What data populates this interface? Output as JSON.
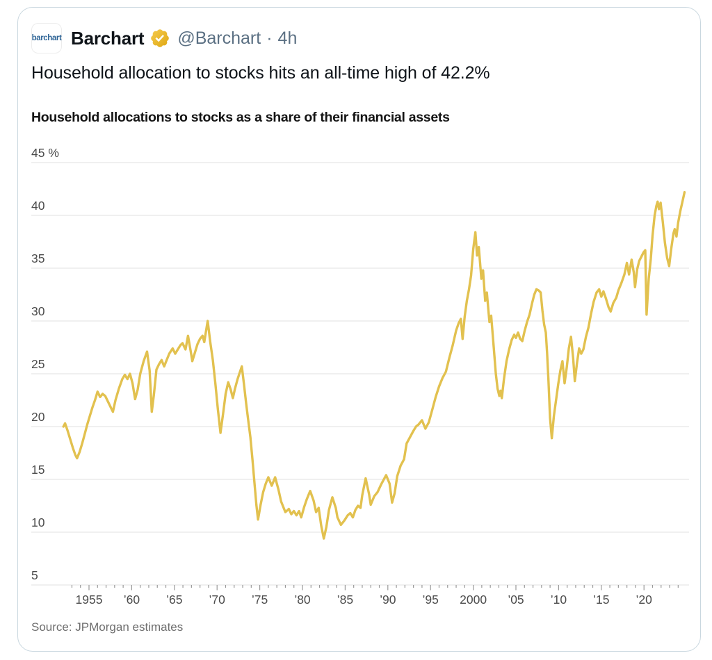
{
  "header": {
    "avatar_text": "barchart",
    "name": "Barchart",
    "verified_badge": "gold-verified-badge-icon",
    "handle": "@Barchart",
    "separator": "·",
    "time": "4h"
  },
  "tweet": {
    "text": "Household allocation to stocks hits an all-time high of 42.2%"
  },
  "colors": {
    "line_gold": "#E2C14F",
    "badge_gold_light": "#F5CB4E",
    "badge_gold_dark": "#DFA712",
    "grid": "#E2E2E2",
    "axis_label": "#4B4B4B",
    "tick_mark": "#9A9A9A",
    "text_dark": "#0F1419",
    "handle_gray": "#5B7083",
    "source_gray": "#6E6E6E",
    "card_border": "#C9D7DF",
    "avatar_blue": "#2E6496"
  },
  "chart_data": {
    "type": "line",
    "title": "Household allocations to stocks as a share of their financial assets",
    "source": "Source: JPMorgan estimates",
    "unit": "%",
    "grid": "horizontal-only",
    "legend": "none",
    "xlim": [
      1952,
      2024.75
    ],
    "ylim": [
      5,
      45
    ],
    "y_ticks": [
      {
        "v": 45,
        "label": "45 %"
      },
      {
        "v": 40,
        "label": "40"
      },
      {
        "v": 35,
        "label": "35"
      },
      {
        "v": 30,
        "label": "30"
      },
      {
        "v": 25,
        "label": "25"
      },
      {
        "v": 20,
        "label": "20"
      },
      {
        "v": 15,
        "label": "15"
      },
      {
        "v": 10,
        "label": "10"
      },
      {
        "v": 5,
        "label": "5"
      }
    ],
    "x_ticks": [
      {
        "year": 1955,
        "label": "1955"
      },
      {
        "year": 1960,
        "label": "’60"
      },
      {
        "year": 1965,
        "label": "’65"
      },
      {
        "year": 1970,
        "label": "’70"
      },
      {
        "year": 1975,
        "label": "’75"
      },
      {
        "year": 1980,
        "label": "’80"
      },
      {
        "year": 1985,
        "label": "’85"
      },
      {
        "year": 1990,
        "label": "’90"
      },
      {
        "year": 1995,
        "label": "’95"
      },
      {
        "year": 2000,
        "label": "2000"
      },
      {
        "year": 2005,
        "label": "’05"
      },
      {
        "year": 2010,
        "label": "’10"
      },
      {
        "year": 2015,
        "label": "’15"
      },
      {
        "year": 2020,
        "label": "’20"
      }
    ],
    "minor_tick_year_range": [
      1953,
      2024
    ],
    "series": [
      {
        "color": "#E2C14F",
        "points": [
          [
            1952.0,
            20.0
          ],
          [
            1952.2,
            20.3
          ],
          [
            1952.5,
            19.6
          ],
          [
            1952.8,
            18.8
          ],
          [
            1953.1,
            18.0
          ],
          [
            1953.4,
            17.3
          ],
          [
            1953.6,
            17.0
          ],
          [
            1953.9,
            17.6
          ],
          [
            1954.2,
            18.4
          ],
          [
            1954.5,
            19.3
          ],
          [
            1954.8,
            20.2
          ],
          [
            1955.1,
            21.0
          ],
          [
            1955.4,
            21.8
          ],
          [
            1955.7,
            22.5
          ],
          [
            1956.0,
            23.3
          ],
          [
            1956.3,
            22.8
          ],
          [
            1956.6,
            23.1
          ],
          [
            1956.9,
            22.9
          ],
          [
            1957.2,
            22.4
          ],
          [
            1957.5,
            21.9
          ],
          [
            1957.8,
            21.4
          ],
          [
            1958.1,
            22.5
          ],
          [
            1958.5,
            23.6
          ],
          [
            1958.9,
            24.5
          ],
          [
            1959.2,
            24.9
          ],
          [
            1959.5,
            24.5
          ],
          [
            1959.8,
            25.0
          ],
          [
            1960.1,
            24.1
          ],
          [
            1960.4,
            22.6
          ],
          [
            1960.7,
            23.5
          ],
          [
            1961.0,
            25.0
          ],
          [
            1961.4,
            26.2
          ],
          [
            1961.8,
            27.1
          ],
          [
            1962.1,
            25.3
          ],
          [
            1962.35,
            21.4
          ],
          [
            1962.6,
            23.0
          ],
          [
            1962.9,
            25.4
          ],
          [
            1963.2,
            25.9
          ],
          [
            1963.5,
            26.3
          ],
          [
            1963.8,
            25.7
          ],
          [
            1964.1,
            26.3
          ],
          [
            1964.4,
            26.9
          ],
          [
            1964.8,
            27.4
          ],
          [
            1965.1,
            26.9
          ],
          [
            1965.4,
            27.3
          ],
          [
            1965.7,
            27.7
          ],
          [
            1965.95,
            27.9
          ],
          [
            1966.3,
            27.3
          ],
          [
            1966.6,
            28.6
          ],
          [
            1966.9,
            27.2
          ],
          [
            1967.1,
            26.2
          ],
          [
            1967.4,
            27.0
          ],
          [
            1967.7,
            27.8
          ],
          [
            1968.0,
            28.3
          ],
          [
            1968.3,
            28.6
          ],
          [
            1968.5,
            28.0
          ],
          [
            1968.7,
            29.0
          ],
          [
            1968.9,
            30.0
          ],
          [
            1969.2,
            28.0
          ],
          [
            1969.5,
            26.3
          ],
          [
            1969.8,
            24.1
          ],
          [
            1970.1,
            21.6
          ],
          [
            1970.4,
            19.4
          ],
          [
            1970.7,
            21.2
          ],
          [
            1971.0,
            23.1
          ],
          [
            1971.3,
            24.2
          ],
          [
            1971.6,
            23.5
          ],
          [
            1971.85,
            22.7
          ],
          [
            1972.1,
            23.6
          ],
          [
            1972.4,
            24.5
          ],
          [
            1972.65,
            25.1
          ],
          [
            1972.9,
            25.7
          ],
          [
            1973.15,
            24.0
          ],
          [
            1973.4,
            22.2
          ],
          [
            1973.65,
            20.6
          ],
          [
            1973.9,
            19.0
          ],
          [
            1974.15,
            16.8
          ],
          [
            1974.4,
            14.5
          ],
          [
            1974.6,
            12.6
          ],
          [
            1974.8,
            11.2
          ],
          [
            1975.1,
            12.6
          ],
          [
            1975.4,
            13.8
          ],
          [
            1975.7,
            14.6
          ],
          [
            1976.0,
            15.2
          ],
          [
            1976.4,
            14.4
          ],
          [
            1976.8,
            15.2
          ],
          [
            1977.2,
            14.0
          ],
          [
            1977.5,
            12.9
          ],
          [
            1978.0,
            11.9
          ],
          [
            1978.4,
            12.2
          ],
          [
            1978.7,
            11.7
          ],
          [
            1979.0,
            12.0
          ],
          [
            1979.3,
            11.6
          ],
          [
            1979.6,
            12.0
          ],
          [
            1979.85,
            11.4
          ],
          [
            1980.2,
            12.4
          ],
          [
            1980.5,
            13.1
          ],
          [
            1980.9,
            13.9
          ],
          [
            1981.3,
            13.0
          ],
          [
            1981.6,
            11.9
          ],
          [
            1981.9,
            12.3
          ],
          [
            1982.2,
            10.6
          ],
          [
            1982.5,
            9.4
          ],
          [
            1982.8,
            10.5
          ],
          [
            1983.1,
            12.1
          ],
          [
            1983.5,
            13.3
          ],
          [
            1983.9,
            12.3
          ],
          [
            1984.1,
            11.4
          ],
          [
            1984.5,
            10.7
          ],
          [
            1984.9,
            11.1
          ],
          [
            1985.3,
            11.6
          ],
          [
            1985.6,
            11.8
          ],
          [
            1985.9,
            11.4
          ],
          [
            1986.2,
            12.1
          ],
          [
            1986.5,
            12.5
          ],
          [
            1986.8,
            12.3
          ],
          [
            1987.0,
            13.5
          ],
          [
            1987.4,
            15.1
          ],
          [
            1987.8,
            13.6
          ],
          [
            1988.0,
            12.6
          ],
          [
            1988.4,
            13.4
          ],
          [
            1988.8,
            13.8
          ],
          [
            1989.2,
            14.5
          ],
          [
            1989.8,
            15.4
          ],
          [
            1990.2,
            14.6
          ],
          [
            1990.5,
            12.8
          ],
          [
            1990.8,
            13.7
          ],
          [
            1991.1,
            15.3
          ],
          [
            1991.5,
            16.3
          ],
          [
            1991.9,
            16.9
          ],
          [
            1992.2,
            18.4
          ],
          [
            1992.6,
            19.0
          ],
          [
            1993.0,
            19.6
          ],
          [
            1993.3,
            20.0
          ],
          [
            1993.6,
            20.2
          ],
          [
            1994.0,
            20.6
          ],
          [
            1994.4,
            19.8
          ],
          [
            1994.8,
            20.4
          ],
          [
            1995.2,
            21.6
          ],
          [
            1995.6,
            22.8
          ],
          [
            1996.0,
            23.8
          ],
          [
            1996.4,
            24.6
          ],
          [
            1996.8,
            25.2
          ],
          [
            1997.2,
            26.5
          ],
          [
            1997.6,
            27.7
          ],
          [
            1998.0,
            29.1
          ],
          [
            1998.3,
            29.8
          ],
          [
            1998.55,
            30.2
          ],
          [
            1998.75,
            28.3
          ],
          [
            1999.0,
            30.4
          ],
          [
            1999.25,
            31.9
          ],
          [
            1999.5,
            33.0
          ],
          [
            1999.75,
            34.3
          ],
          [
            2000.0,
            36.8
          ],
          [
            2000.25,
            38.4
          ],
          [
            2000.45,
            36.2
          ],
          [
            2000.65,
            37.0
          ],
          [
            2000.95,
            34.0
          ],
          [
            2001.15,
            34.8
          ],
          [
            2001.4,
            31.9
          ],
          [
            2001.6,
            32.7
          ],
          [
            2001.9,
            29.9
          ],
          [
            2002.1,
            30.5
          ],
          [
            2002.4,
            27.5
          ],
          [
            2002.65,
            25.0
          ],
          [
            2002.85,
            23.6
          ],
          [
            2003.05,
            22.9
          ],
          [
            2003.2,
            23.4
          ],
          [
            2003.35,
            22.7
          ],
          [
            2003.6,
            24.5
          ],
          [
            2003.9,
            26.2
          ],
          [
            2004.2,
            27.3
          ],
          [
            2004.5,
            28.2
          ],
          [
            2004.8,
            28.7
          ],
          [
            2005.0,
            28.4
          ],
          [
            2005.25,
            28.9
          ],
          [
            2005.5,
            28.3
          ],
          [
            2005.75,
            28.1
          ],
          [
            2006.0,
            29.0
          ],
          [
            2006.3,
            29.9
          ],
          [
            2006.6,
            30.6
          ],
          [
            2006.9,
            31.7
          ],
          [
            2007.15,
            32.5
          ],
          [
            2007.4,
            33.0
          ],
          [
            2007.65,
            32.9
          ],
          [
            2007.9,
            32.7
          ],
          [
            2008.1,
            31.0
          ],
          [
            2008.3,
            29.7
          ],
          [
            2008.5,
            28.9
          ],
          [
            2008.65,
            27.0
          ],
          [
            2008.8,
            24.5
          ],
          [
            2009.0,
            20.8
          ],
          [
            2009.2,
            18.9
          ],
          [
            2009.45,
            21.0
          ],
          [
            2009.7,
            22.5
          ],
          [
            2009.95,
            24.0
          ],
          [
            2010.2,
            25.3
          ],
          [
            2010.45,
            26.2
          ],
          [
            2010.7,
            24.1
          ],
          [
            2010.95,
            25.6
          ],
          [
            2011.2,
            27.4
          ],
          [
            2011.45,
            28.5
          ],
          [
            2011.7,
            26.5
          ],
          [
            2011.9,
            24.3
          ],
          [
            2012.15,
            26.0
          ],
          [
            2012.4,
            27.4
          ],
          [
            2012.65,
            26.9
          ],
          [
            2012.9,
            27.3
          ],
          [
            2013.2,
            28.5
          ],
          [
            2013.5,
            29.4
          ],
          [
            2013.8,
            30.7
          ],
          [
            2014.1,
            31.8
          ],
          [
            2014.45,
            32.7
          ],
          [
            2014.75,
            33.0
          ],
          [
            2015.0,
            32.3
          ],
          [
            2015.25,
            32.8
          ],
          [
            2015.55,
            32.1
          ],
          [
            2015.85,
            31.3
          ],
          [
            2016.1,
            30.9
          ],
          [
            2016.4,
            31.7
          ],
          [
            2016.75,
            32.2
          ],
          [
            2017.0,
            32.9
          ],
          [
            2017.35,
            33.6
          ],
          [
            2017.7,
            34.4
          ],
          [
            2018.0,
            35.5
          ],
          [
            2018.25,
            34.4
          ],
          [
            2018.55,
            35.8
          ],
          [
            2018.8,
            34.6
          ],
          [
            2018.95,
            33.2
          ],
          [
            2019.2,
            34.9
          ],
          [
            2019.45,
            35.7
          ],
          [
            2019.7,
            36.1
          ],
          [
            2019.95,
            36.5
          ],
          [
            2020.15,
            36.7
          ],
          [
            2020.3,
            30.6
          ],
          [
            2020.55,
            34.0
          ],
          [
            2020.8,
            35.9
          ],
          [
            2021.0,
            38.1
          ],
          [
            2021.25,
            40.0
          ],
          [
            2021.45,
            40.9
          ],
          [
            2021.6,
            41.3
          ],
          [
            2021.75,
            40.6
          ],
          [
            2021.95,
            41.2
          ],
          [
            2022.2,
            39.4
          ],
          [
            2022.45,
            37.4
          ],
          [
            2022.7,
            36.0
          ],
          [
            2022.95,
            35.2
          ],
          [
            2023.2,
            36.9
          ],
          [
            2023.45,
            38.3
          ],
          [
            2023.6,
            38.7
          ],
          [
            2023.8,
            38.0
          ],
          [
            2024.0,
            39.3
          ],
          [
            2024.25,
            40.4
          ],
          [
            2024.5,
            41.3
          ],
          [
            2024.75,
            42.2
          ]
        ]
      }
    ]
  }
}
